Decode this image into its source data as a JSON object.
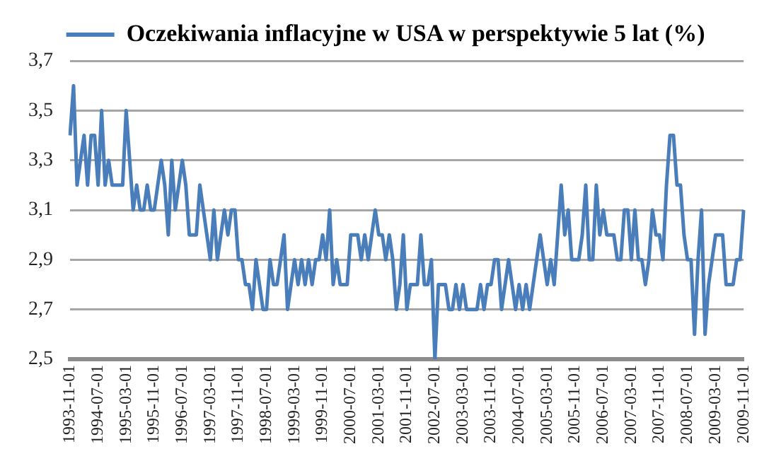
{
  "chart_data": {
    "type": "line",
    "categories": [
      "1993-11-01",
      null,
      null,
      null,
      null,
      null,
      null,
      null,
      "1994-07-01",
      null,
      null,
      null,
      null,
      null,
      null,
      null,
      "1995-03-01",
      null,
      null,
      null,
      null,
      null,
      null,
      null,
      "1995-11-01",
      null,
      null,
      null,
      null,
      null,
      null,
      null,
      "1996-07-01",
      null,
      null,
      null,
      null,
      null,
      null,
      null,
      "1997-03-01",
      null,
      null,
      null,
      null,
      null,
      null,
      null,
      "1997-11-01",
      null,
      null,
      null,
      null,
      null,
      null,
      null,
      "1998-07-01",
      null,
      null,
      null,
      null,
      null,
      null,
      null,
      "1999-03-01",
      null,
      null,
      null,
      null,
      null,
      null,
      null,
      "1999-11-01",
      null,
      null,
      null,
      null,
      null,
      null,
      null,
      "2000-07-01",
      null,
      null,
      null,
      null,
      null,
      null,
      null,
      "2001-03-01",
      null,
      null,
      null,
      null,
      null,
      null,
      null,
      "2001-11-01",
      null,
      null,
      null,
      null,
      null,
      null,
      null,
      "2002-07-01",
      null,
      null,
      null,
      null,
      null,
      null,
      null,
      "2003-03-01",
      null,
      null,
      null,
      null,
      null,
      null,
      null,
      "2003-11-01",
      null,
      null,
      null,
      null,
      null,
      null,
      null,
      "2004-07-01",
      null,
      null,
      null,
      null,
      null,
      null,
      null,
      "2005-03-01",
      null,
      null,
      null,
      null,
      null,
      null,
      null,
      "2005-11-01",
      null,
      null,
      null,
      null,
      null,
      null,
      null,
      "2006-07-01",
      null,
      null,
      null,
      null,
      null,
      null,
      null,
      "2007-03-01",
      null,
      null,
      null,
      null,
      null,
      null,
      null,
      "2007-11-01",
      null,
      null,
      null,
      null,
      null,
      null,
      null,
      "2008-07-01",
      null,
      null,
      null,
      null,
      null,
      null,
      null,
      "2009-03-01",
      null,
      null,
      null,
      null,
      null,
      null,
      null,
      "2009-11-01"
    ],
    "series": [
      {
        "name": "Oczekiwania inflacyjne w USA w perspektywie 5 lat (%)",
        "color": "#4a7ebb",
        "values": [
          3.4,
          3.6,
          3.2,
          3.3,
          3.4,
          3.2,
          3.4,
          3.4,
          3.2,
          3.5,
          3.2,
          3.3,
          3.2,
          3.2,
          3.2,
          3.2,
          3.5,
          3.3,
          3.1,
          3.2,
          3.1,
          3.1,
          3.2,
          3.1,
          3.1,
          3.2,
          3.3,
          3.2,
          3.0,
          3.3,
          3.1,
          3.2,
          3.3,
          3.2,
          3.0,
          3.0,
          3.0,
          3.2,
          3.1,
          3.0,
          2.9,
          3.1,
          2.9,
          3.0,
          3.1,
          3.0,
          3.1,
          3.1,
          2.9,
          2.9,
          2.8,
          2.8,
          2.7,
          2.9,
          2.8,
          2.7,
          2.7,
          2.9,
          2.8,
          2.8,
          2.9,
          3.0,
          2.7,
          2.8,
          2.9,
          2.8,
          2.9,
          2.8,
          2.9,
          2.8,
          2.9,
          2.9,
          3.0,
          2.9,
          3.1,
          2.8,
          2.9,
          2.8,
          2.8,
          2.8,
          3.0,
          3.0,
          3.0,
          2.9,
          3.0,
          2.9,
          3.0,
          3.1,
          3.0,
          3.0,
          2.9,
          3.0,
          2.9,
          2.7,
          2.8,
          3.0,
          2.7,
          2.8,
          2.8,
          2.8,
          3.0,
          2.8,
          2.8,
          2.9,
          2.5,
          2.8,
          2.8,
          2.8,
          2.7,
          2.7,
          2.8,
          2.7,
          2.8,
          2.7,
          2.7,
          2.7,
          2.7,
          2.8,
          2.7,
          2.8,
          2.8,
          2.9,
          2.9,
          2.7,
          2.8,
          2.9,
          2.8,
          2.7,
          2.8,
          2.7,
          2.8,
          2.7,
          2.8,
          2.9,
          3.0,
          2.9,
          2.8,
          2.9,
          2.8,
          3.0,
          3.2,
          3.0,
          3.1,
          2.9,
          2.9,
          2.9,
          3.0,
          3.2,
          2.9,
          2.9,
          3.2,
          3.0,
          3.1,
          3.0,
          3.0,
          3.0,
          2.9,
          2.9,
          3.1,
          3.1,
          2.9,
          3.1,
          2.9,
          2.9,
          2.8,
          2.9,
          3.1,
          3.0,
          3.0,
          2.9,
          3.2,
          3.4,
          3.4,
          3.2,
          3.2,
          3.0,
          2.9,
          2.9,
          2.6,
          2.9,
          3.1,
          2.6,
          2.8,
          2.9,
          3.0,
          3.0,
          3.0,
          2.8,
          2.8,
          2.8,
          2.9,
          2.9,
          3.1
        ]
      }
    ],
    "ylim": [
      2.5,
      3.7
    ],
    "yticks": [
      {
        "value": 2.5,
        "label": "2,5"
      },
      {
        "value": 2.7,
        "label": "2,7"
      },
      {
        "value": 2.9,
        "label": "2,9"
      },
      {
        "value": 3.1,
        "label": "3,1"
      },
      {
        "value": 3.3,
        "label": "3,3"
      },
      {
        "value": 3.5,
        "label": "3,5"
      },
      {
        "value": 3.7,
        "label": "3,7"
      }
    ],
    "grid": "y",
    "legend": "top",
    "marker": "none",
    "line_style": "solid"
  }
}
